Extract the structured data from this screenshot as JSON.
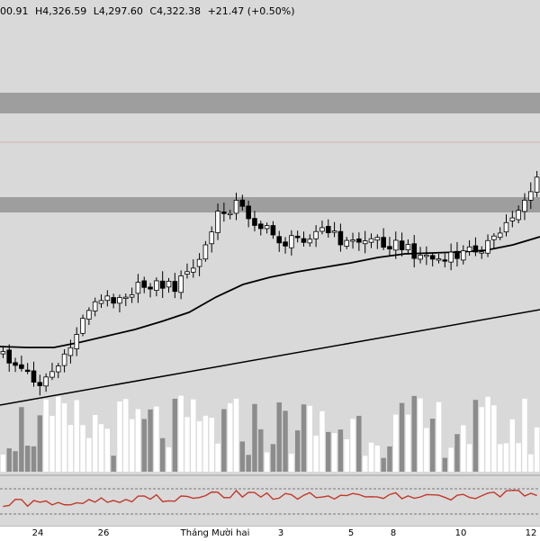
{
  "ohlc_readout": {
    "open": "00.91",
    "high": "H4,326.59",
    "low": "L4,297.60",
    "close": "C4,322.38",
    "change": "+21.47 (+0.50%)"
  },
  "x_axis": {
    "ticks": [
      "24",
      "26",
      "Tháng Mười hai",
      "3",
      "5",
      "8",
      "10",
      "12"
    ]
  },
  "colors": {
    "background": "#d9d9d9",
    "up_candle": "#ffffff",
    "down_candle": "#000000",
    "moving_average": "#000000",
    "trend_line": "#000000",
    "zone_band": "#9e9e9e",
    "resistance_line": "#d07070",
    "rsi_line": "#c0392b",
    "volume_gray": "#8c8c8c",
    "volume_white": "#ffffff"
  },
  "icons": {}
}
